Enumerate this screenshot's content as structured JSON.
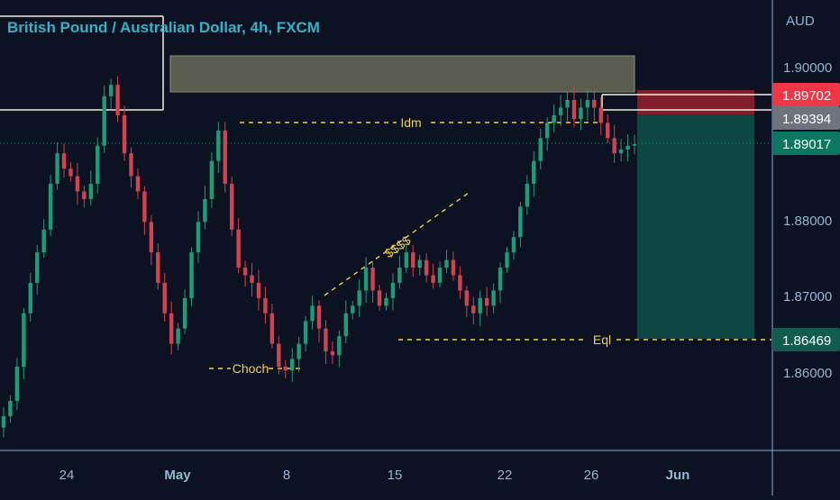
{
  "header": {
    "title": "British Pound / Australian Dollar, 4h, FXCM"
  },
  "theme": {
    "background": "#0c1221",
    "axis_line": "#7ab0d8",
    "axis_text": "#8fb8d6",
    "title_color": "#2fb3c9",
    "bull_color": "#1b9e78",
    "bear_color": "#d2424f",
    "annotation_color": "#f0d24a",
    "white_line": "#f2ecdc",
    "supply_zone": "#5a5d4e",
    "stop_zone": "#8c1f2c",
    "target_zone": "#0e4c48",
    "price_tag_red": "#f23645",
    "price_tag_gray": "#6f737d",
    "price_tag_green": "#087860",
    "price_tag_green2": "#0f5d4f"
  },
  "chart_data": {
    "type": "candlestick",
    "title": "British Pound / Australian Dollar, 4h, FXCM",
    "currency_label": "AUD",
    "y_ticks": [
      "1.90000",
      "1.88000",
      "1.87000",
      "1.86000"
    ],
    "y_tick_values": [
      1.9,
      1.88,
      1.87,
      1.86
    ],
    "x_ticks": [
      "24",
      "May",
      "8",
      "15",
      "22",
      "26",
      "Jun"
    ],
    "ylim": [
      1.85,
      1.907
    ],
    "grid": false,
    "price_tags": [
      {
        "label": "1.89702",
        "value": 1.89702,
        "style": "red"
      },
      {
        "label": "1.89394",
        "value": 1.89394,
        "style": "gray"
      },
      {
        "label": "1.89017",
        "value": 1.89017,
        "style": "green"
      },
      {
        "label": "1.86469",
        "value": 1.86469,
        "style": "green2"
      }
    ],
    "annotations": [
      {
        "label": "Idm",
        "value": 1.89394
      },
      {
        "label": "$$$$"
      },
      {
        "label": "Choch",
        "value": 1.8612
      },
      {
        "label": "Eql",
        "value": 1.86469
      }
    ],
    "zones": {
      "supply": [
        1.8975,
        1.9015
      ],
      "stop": [
        1.89394,
        1.89702
      ],
      "target": [
        1.86469,
        1.89394
      ]
    },
    "close_price": [
      1.8545,
      1.8565,
      1.861,
      1.868,
      1.872,
      1.876,
      1.879,
      1.885,
      1.889,
      1.887,
      1.886,
      1.884,
      1.883,
      1.885,
      1.89,
      1.8965,
      1.898,
      1.894,
      1.889,
      1.886,
      1.884,
      1.88,
      1.876,
      1.872,
      1.868,
      1.864,
      1.866,
      1.87,
      1.876,
      1.88,
      1.883,
      1.888,
      1.892,
      1.885,
      1.879,
      1.874,
      1.873,
      1.872,
      1.87,
      1.868,
      1.864,
      1.861,
      1.8605,
      1.862,
      1.864,
      1.867,
      1.869,
      1.866,
      1.863,
      1.8625,
      1.865,
      1.868,
      1.869,
      1.871,
      1.874,
      1.871,
      1.869,
      1.87,
      1.872,
      1.874,
      1.876,
      1.874,
      1.875,
      1.873,
      1.872,
      1.874,
      1.875,
      1.873,
      1.871,
      1.869,
      1.868,
      1.87,
      1.869,
      1.871,
      1.874,
      1.876,
      1.878,
      1.882,
      1.885,
      1.888,
      1.891,
      1.893,
      1.894,
      1.895,
      1.896,
      1.8935,
      1.895,
      1.896,
      1.895,
      1.893,
      1.891,
      1.889,
      1.8895,
      1.89,
      1.8902
    ]
  }
}
